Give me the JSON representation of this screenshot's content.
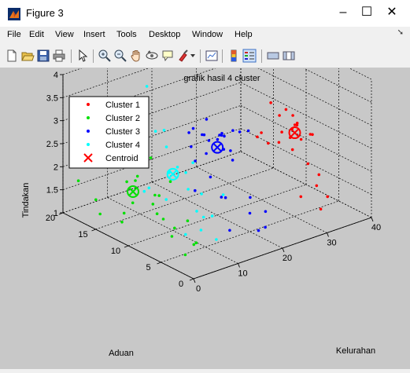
{
  "window": {
    "title": "Figure 3",
    "minimize": "–",
    "maximize": "☐",
    "close": "✕"
  },
  "menu": [
    "File",
    "Edit",
    "View",
    "Insert",
    "Tools",
    "Desktop",
    "Window",
    "Help"
  ],
  "toolbar_icons": [
    "new-figure-icon",
    "open-file-icon",
    "save-icon",
    "print-icon",
    "select-arrow-icon",
    "zoom-in-icon",
    "zoom-out-icon",
    "pan-icon",
    "rotate-3d-icon",
    "data-cursor-icon",
    "brush-icon",
    "link-plot-icon",
    "colorbar-icon",
    "legend-icon",
    "hide-plot-tools-icon",
    "show-plot-tools-icon"
  ],
  "colors": {
    "cluster1": "#ff0000",
    "cluster2": "#00e000",
    "cluster3": "#0000ff",
    "cluster4": "#00ffff",
    "axes_bg": "#c8c8c8"
  },
  "chart_data": {
    "type": "scatter",
    "title": "grafik hasil 4 cluster",
    "xlabel": "Kelurahan",
    "ylabel": "Aduan",
    "zlabel": "Tindakan",
    "xlim": [
      0,
      40
    ],
    "ylim": [
      0,
      20
    ],
    "zlim": [
      1,
      4
    ],
    "xticks": [
      "0",
      "10",
      "20",
      "30",
      "40"
    ],
    "yticks": [
      "0",
      "5",
      "10",
      "15",
      "20"
    ],
    "zticks": [
      "1",
      "1.5",
      "2",
      "2.5",
      "3",
      "3.5",
      "4"
    ],
    "grid": true,
    "legend_position": "top-left",
    "legend": [
      "Cluster 1",
      "Cluster 2",
      "Cluster 3",
      "Cluster 4",
      "Centroid"
    ],
    "series": [
      {
        "name": "Cluster 1",
        "color": "#ff0000",
        "points": [
          [
            35,
            8,
            2.6
          ],
          [
            36,
            9,
            2.5
          ],
          [
            37,
            7,
            2.4
          ],
          [
            34,
            10,
            2.7
          ],
          [
            38,
            8,
            2.3
          ],
          [
            33,
            6,
            2.5
          ],
          [
            35,
            12,
            2.8
          ],
          [
            36,
            11,
            2.2
          ],
          [
            37,
            10,
            2.6
          ],
          [
            34,
            8,
            2.1
          ],
          [
            31,
            6,
            2.8
          ],
          [
            32,
            7,
            2.5
          ],
          [
            30,
            9,
            2.3
          ],
          [
            28,
            6,
            2.6
          ],
          [
            35,
            5,
            1.5
          ],
          [
            36,
            4,
            1.3
          ],
          [
            33,
            3,
            1.2
          ],
          [
            37,
            6,
            1.6
          ],
          [
            30,
            4,
            1.5
          ],
          [
            34,
            9,
            2.9
          ],
          [
            29,
            10,
            2.4
          ],
          [
            27,
            8,
            2.7
          ],
          [
            38,
            10,
            2.4
          ],
          [
            36,
            7,
            1.8
          ]
        ]
      },
      {
        "name": "Cluster 2",
        "color": "#00e000",
        "points": [
          [
            2,
            14,
            3.0
          ],
          [
            3,
            16,
            3.1
          ],
          [
            1,
            18,
            2.8
          ],
          [
            4,
            15,
            2.6
          ],
          [
            3,
            10,
            2.9
          ],
          [
            5,
            12,
            2.2
          ],
          [
            6,
            13,
            2.0
          ],
          [
            7,
            14,
            2.3
          ],
          [
            4,
            8,
            2.1
          ],
          [
            6,
            10,
            1.9
          ],
          [
            2,
            6,
            1.8
          ],
          [
            1,
            4,
            1.6
          ],
          [
            3,
            2,
            1.5
          ],
          [
            5,
            3,
            1.4
          ],
          [
            6,
            5,
            1.7
          ],
          [
            8,
            12,
            2.5
          ],
          [
            2,
            12,
            1.5
          ],
          [
            1,
            15,
            1.3
          ],
          [
            3,
            13,
            1.2
          ],
          [
            4,
            4,
            1.1
          ],
          [
            6,
            7,
            1.4
          ],
          [
            5,
            9,
            1.6
          ],
          [
            7,
            15,
            1.8
          ],
          [
            8,
            9,
            2.2
          ],
          [
            1,
            10,
            1.9
          ],
          [
            3,
            17,
            1.4
          ],
          [
            2,
            19,
            1.7
          ],
          [
            7,
            11,
            1.6
          ]
        ]
      },
      {
        "name": "Cluster 3",
        "color": "#0000ff",
        "points": [
          [
            20,
            12,
            2.6
          ],
          [
            21,
            13,
            2.5
          ],
          [
            22,
            11,
            2.6
          ],
          [
            23,
            12,
            2.4
          ],
          [
            21,
            10,
            2.7
          ],
          [
            20,
            9,
            2.5
          ],
          [
            19,
            11,
            2.3
          ],
          [
            22,
            13,
            2.8
          ],
          [
            24,
            12,
            2.5
          ],
          [
            23,
            10,
            2.3
          ],
          [
            20,
            14,
            2.2
          ],
          [
            18,
            12,
            2.1
          ],
          [
            25,
            11,
            2.6
          ],
          [
            22,
            9,
            2.2
          ],
          [
            21,
            15,
            2.4
          ],
          [
            19,
            13,
            2.7
          ],
          [
            24,
            14,
            2.2
          ],
          [
            17,
            9,
            2.0
          ],
          [
            26,
            13,
            2.3
          ],
          [
            18,
            8,
            1.6
          ],
          [
            23,
            7,
            1.5
          ],
          [
            20,
            5,
            1.4
          ],
          [
            16,
            6,
            1.8
          ],
          [
            14,
            4,
            1.3
          ],
          [
            25,
            6,
            1.2
          ],
          [
            22,
            4,
            1.1
          ],
          [
            19,
            3,
            1.2
          ],
          [
            27,
            10,
            2.6
          ],
          [
            28,
            12,
            2.4
          ],
          [
            15,
            10,
            1.7
          ]
        ]
      },
      {
        "name": "Cluster 4",
        "color": "#00ffff",
        "points": [
          [
            12,
            14,
            2.8
          ],
          [
            10,
            15,
            2.6
          ],
          [
            11,
            12,
            3.0
          ],
          [
            13,
            13,
            2.5
          ],
          [
            9,
            10,
            2.3
          ],
          [
            14,
            12,
            2.1
          ],
          [
            10,
            8,
            2.4
          ],
          [
            12,
            9,
            1.9
          ],
          [
            15,
            14,
            1.8
          ],
          [
            8,
            13,
            1.7
          ],
          [
            11,
            7,
            1.6
          ],
          [
            13,
            6,
            1.5
          ],
          [
            9,
            5,
            1.4
          ],
          [
            14,
            8,
            1.3
          ],
          [
            10,
            11,
            1.6
          ],
          [
            15,
            9,
            1.7
          ],
          [
            12,
            15,
            1.5
          ],
          [
            11,
            4,
            1.2
          ],
          [
            7,
            6,
            1.3
          ],
          [
            16,
            11,
            2.2
          ],
          [
            9,
            17,
            3.3
          ],
          [
            13,
            16,
            3.6
          ],
          [
            12,
            18,
            2.0
          ],
          [
            8,
            16,
            2.1
          ],
          [
            14,
            5,
            2.0
          ]
        ]
      }
    ],
    "centroids": [
      {
        "cluster": "Cluster 1",
        "color": "#ff0000",
        "point": [
          34.5,
          8,
          2.45
        ]
      },
      {
        "cluster": "Cluster 2",
        "color": "#00e000",
        "point": [
          4,
          12,
          1.9
        ]
      },
      {
        "cluster": "Cluster 3",
        "color": "#0000ff",
        "point": [
          21.5,
          11,
          2.35
        ]
      },
      {
        "cluster": "Cluster 4",
        "color": "#00ffff",
        "point": [
          11.5,
          11,
          2.1
        ]
      }
    ]
  }
}
